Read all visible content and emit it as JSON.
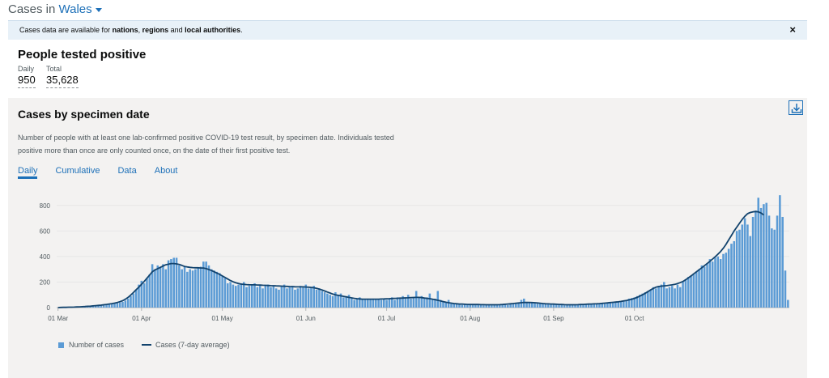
{
  "heading": {
    "prefix": "Cases in",
    "location": "Wales"
  },
  "banner": {
    "text_before": "Cases data are available for ",
    "link1": "nations",
    "sep1": ", ",
    "link2": "regions",
    "sep2": " and ",
    "link3": "local authorities",
    "text_after": ".",
    "close": "×"
  },
  "summary": {
    "title": "People tested positive",
    "daily_label": "Daily",
    "daily_value": "950",
    "total_label": "Total",
    "total_value": "35,628"
  },
  "card": {
    "title": "Cases by specimen date",
    "description": "Number of people with at least one lab-confirmed positive COVID-19 test result, by specimen date. Individuals tested positive more than once are only counted once, on the date of their first positive test.",
    "tabs": [
      "Daily",
      "Cumulative",
      "Data",
      "About"
    ],
    "active_tab": "Daily",
    "download_icon": "download-icon"
  },
  "legend": {
    "bars": "Number of cases",
    "line": "Cases (7-day average)"
  },
  "colors": {
    "bar": "#5b9bd5",
    "line": "#12436d",
    "accent": "#1d70b8"
  },
  "chart_data": {
    "type": "bar",
    "start_date": "2020-03-01",
    "x_tick_labels": [
      "01 Mar",
      "01 Apr",
      "01 May",
      "01 Jun",
      "01 Jul",
      "01 Aug",
      "01 Sep",
      "01 Oct"
    ],
    "y_ticks": [
      0,
      200,
      400,
      600,
      800
    ],
    "ylim": [
      0,
      900
    ],
    "grid": true,
    "legend_position": "bottom-left",
    "series": [
      {
        "name": "Number of cases",
        "type": "bar",
        "values": [
          0,
          0,
          0,
          1,
          2,
          2,
          3,
          3,
          4,
          5,
          6,
          7,
          9,
          10,
          12,
          14,
          16,
          18,
          20,
          24,
          28,
          32,
          36,
          40,
          45,
          55,
          70,
          90,
          110,
          140,
          180,
          210,
          190,
          230,
          260,
          340,
          300,
          330,
          320,
          340,
          300,
          370,
          380,
          390,
          390,
          330,
          300,
          320,
          280,
          300,
          290,
          300,
          310,
          320,
          360,
          360,
          330,
          300,
          290,
          280,
          270,
          250,
          230,
          190,
          200,
          180,
          170,
          180,
          190,
          200,
          160,
          170,
          180,
          190,
          160,
          170,
          150,
          170,
          180,
          160,
          170,
          150,
          140,
          170,
          180,
          150,
          160,
          170,
          140,
          150,
          170,
          160,
          180,
          150,
          160,
          170,
          140,
          150,
          130,
          120,
          110,
          100,
          90,
          120,
          100,
          110,
          80,
          90,
          100,
          70,
          60,
          70,
          80,
          70,
          60,
          70,
          60,
          70,
          60,
          70,
          60,
          70,
          60,
          70,
          80,
          60,
          80,
          70,
          90,
          80,
          100,
          70,
          80,
          130,
          80,
          90,
          70,
          80,
          110,
          60,
          70,
          130,
          60,
          50,
          40,
          60,
          30,
          30,
          30,
          25,
          20,
          25,
          20,
          20,
          22,
          20,
          25,
          20,
          18,
          20,
          22,
          18,
          25,
          20,
          22,
          25,
          30,
          20,
          25,
          30,
          35,
          40,
          60,
          70,
          45,
          40,
          35,
          38,
          30,
          30,
          28,
          30,
          25,
          25,
          22,
          22,
          20,
          20,
          18,
          20,
          18,
          20,
          22,
          20,
          22,
          25,
          25,
          28,
          30,
          28,
          30,
          32,
          35,
          30,
          35,
          40,
          38,
          40,
          45,
          50,
          55,
          60,
          70,
          75,
          80,
          90,
          100,
          110,
          120,
          130,
          140,
          160,
          150,
          170,
          180,
          200,
          150,
          160,
          170,
          150,
          180,
          160,
          200,
          220,
          240,
          250,
          260,
          280,
          300,
          330,
          320,
          340,
          380,
          360,
          390,
          400,
          380,
          420,
          430,
          460,
          500,
          520,
          600,
          610,
          650,
          700,
          650,
          560,
          710,
          760,
          860,
          780,
          810,
          820,
          720,
          620,
          610,
          720,
          880,
          710,
          290,
          60
        ]
      },
      {
        "name": "Cases (7-day average)",
        "type": "line",
        "values": [
          0,
          1,
          2,
          2,
          3,
          3,
          4,
          5,
          6,
          7,
          8,
          10,
          11,
          13,
          15,
          17,
          19,
          22,
          25,
          28,
          31,
          35,
          40,
          46,
          54,
          65,
          80,
          98,
          118,
          140,
          160,
          182,
          205,
          230,
          255,
          280,
          295,
          305,
          315,
          325,
          335,
          340,
          345,
          345,
          342,
          338,
          330,
          322,
          318,
          315,
          313,
          312,
          312,
          310,
          310,
          305,
          298,
          290,
          280,
          270,
          260,
          248,
          236,
          224,
          212,
          202,
          194,
          188,
          184,
          182,
          180,
          179,
          178,
          178,
          177,
          176,
          175,
          174,
          173,
          172,
          171,
          170,
          169,
          168,
          167,
          166,
          165,
          164,
          163,
          162,
          162,
          162,
          161,
          160,
          158,
          155,
          150,
          145,
          138,
          130,
          122,
          114,
          106,
          100,
          96,
          92,
          88,
          84,
          80,
          76,
          72,
          70,
          68,
          66,
          66,
          66,
          66,
          66,
          66,
          66,
          67,
          68,
          69,
          70,
          71,
          72,
          73,
          74,
          75,
          76,
          77,
          78,
          79,
          80,
          80,
          78,
          75,
          72,
          70,
          66,
          62,
          57,
          52,
          47,
          42,
          38,
          35,
          32,
          30,
          28,
          27,
          26,
          25,
          24,
          24,
          24,
          24,
          23,
          23,
          22,
          22,
          22,
          22,
          22,
          23,
          24,
          26,
          28,
          30,
          32,
          34,
          36,
          38,
          40,
          40,
          40,
          39,
          38,
          36,
          34,
          32,
          30,
          29,
          28,
          27,
          26,
          25,
          24,
          23,
          22,
          22,
          22,
          22,
          23,
          24,
          25,
          26,
          27,
          28,
          29,
          30,
          31,
          33,
          35,
          37,
          39,
          41,
          43,
          45,
          48,
          52,
          56,
          60,
          65,
          72,
          80,
          90,
          100,
          112,
          125,
          138,
          150,
          160,
          165,
          168,
          170,
          172,
          175,
          178,
          182,
          188,
          195,
          205,
          218,
          232,
          248,
          264,
          280,
          296,
          312,
          328,
          345,
          362,
          380,
          398,
          418,
          440,
          465,
          495,
          530,
          565,
          600,
          630,
          660,
          690,
          715,
          735,
          745,
          750,
          752,
          750,
          740,
          725
        ]
      }
    ]
  }
}
